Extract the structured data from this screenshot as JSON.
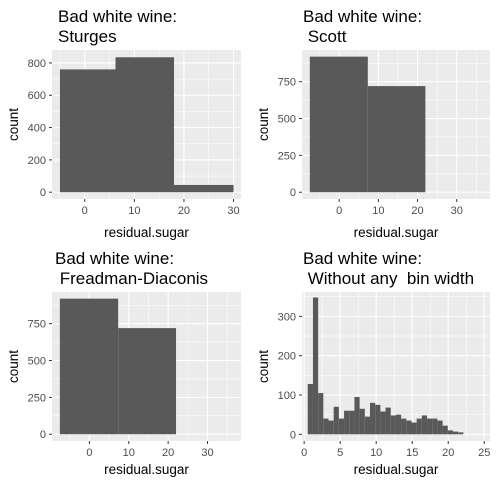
{
  "chart_data": [
    {
      "type": "bar",
      "title_lines": [
        "Bad white wine:",
        "Sturges"
      ],
      "xlabel": "residual.sugar",
      "ylabel": "count",
      "xlim": [
        -6.6,
        31.5
      ],
      "ylim": [
        -42,
        880
      ],
      "xticks": [
        0,
        10,
        20,
        30
      ],
      "yticks": [
        0,
        200,
        400,
        600,
        800
      ],
      "bins": [
        {
          "x0": -5,
          "x1": 6.2,
          "count": 760
        },
        {
          "x0": 6.2,
          "x1": 18,
          "count": 835
        },
        {
          "x0": 18,
          "x1": 30,
          "count": 45
        }
      ]
    },
    {
      "type": "bar",
      "title_lines": [
        "Bad white wine:",
        " Scott"
      ],
      "xlabel": "residual.sugar",
      "ylabel": "count",
      "xlim": [
        -9.5,
        38.5
      ],
      "ylim": [
        -46,
        965
      ],
      "xticks": [
        0,
        10,
        20,
        30
      ],
      "yticks": [
        0,
        250,
        500,
        750
      ],
      "bins": [
        {
          "x0": -7.5,
          "x1": 7.3,
          "count": 920
        },
        {
          "x0": 7.3,
          "x1": 22,
          "count": 720
        }
      ]
    },
    {
      "type": "bar",
      "title_lines": [
        "Bad white wine:",
        " Freadman-Diaconis"
      ],
      "xlabel": "residual.sugar",
      "ylabel": "count",
      "xlim": [
        -9.5,
        38.5
      ],
      "ylim": [
        -46,
        965
      ],
      "xticks": [
        0,
        10,
        20,
        30
      ],
      "yticks": [
        0,
        250,
        500,
        750
      ],
      "bins": [
        {
          "x0": -7.5,
          "x1": 7.3,
          "count": 920
        },
        {
          "x0": 7.3,
          "x1": 22,
          "count": 720
        }
      ]
    },
    {
      "type": "bar",
      "title_lines": [
        "Bad white wine:",
        " Without any  bin width"
      ],
      "xlabel": "residual.sugar",
      "ylabel": "count",
      "xlim": [
        -0.3,
        25.8
      ],
      "ylim": [
        -17,
        362
      ],
      "xticks": [
        0,
        5,
        10,
        15,
        20,
        25
      ],
      "yticks": [
        0,
        100,
        200,
        300
      ],
      "bin_start": 0.5,
      "bin_width": 0.72,
      "counts": [
        128,
        348,
        105,
        40,
        35,
        70,
        40,
        60,
        60,
        95,
        65,
        45,
        80,
        75,
        58,
        68,
        48,
        50,
        40,
        35,
        30,
        40,
        48,
        40,
        40,
        35,
        22,
        10,
        7,
        5
      ]
    }
  ]
}
